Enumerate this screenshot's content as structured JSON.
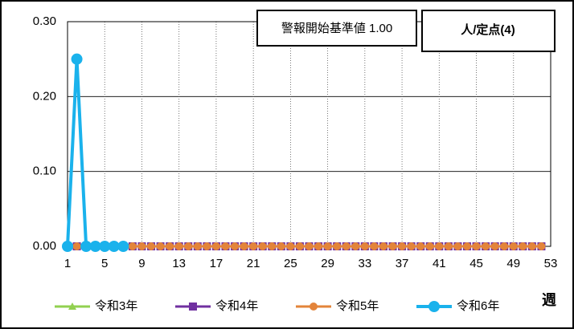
{
  "chart_data": {
    "type": "line",
    "annotations": [
      "警報開始基準値 1.00",
      "人/定点(4)"
    ],
    "x_label": "週",
    "x": [
      1,
      2,
      3,
      4,
      5,
      6,
      7,
      8,
      9,
      10,
      11,
      12,
      13,
      14,
      15,
      16,
      17,
      18,
      19,
      20,
      21,
      22,
      23,
      24,
      25,
      26,
      27,
      28,
      29,
      30,
      31,
      32,
      33,
      34,
      35,
      36,
      37,
      38,
      39,
      40,
      41,
      42,
      43,
      44,
      45,
      46,
      47,
      48,
      49,
      50,
      51,
      52
    ],
    "xlim": [
      1,
      53
    ],
    "xticks": [
      1,
      5,
      9,
      13,
      17,
      21,
      25,
      29,
      33,
      37,
      41,
      45,
      49,
      53
    ],
    "ylim": [
      0,
      0.3
    ],
    "yticks": [
      {
        "value": 0,
        "label": "0.00"
      },
      {
        "value": 0.1,
        "label": "0.10"
      },
      {
        "value": 0.2,
        "label": "0.20"
      },
      {
        "value": 0.3,
        "label": "0.30"
      }
    ],
    "grid": true,
    "series": [
      {
        "name": "令和3年",
        "color": "#92d050",
        "marker": "triangle",
        "values": [
          0,
          0,
          0,
          0,
          0,
          0,
          0,
          0,
          0,
          0,
          0,
          0,
          0,
          0,
          0,
          0,
          0,
          0,
          0,
          0,
          0,
          0,
          0,
          0,
          0,
          0,
          0,
          0,
          0,
          0,
          0,
          0,
          0,
          0,
          0,
          0,
          0,
          0,
          0,
          0,
          0,
          0,
          0,
          0,
          0,
          0,
          0,
          0,
          0,
          0,
          0,
          0
        ]
      },
      {
        "name": "令和4年",
        "color": "#7030a0",
        "marker": "square",
        "values": [
          0,
          0,
          0,
          0,
          0,
          0,
          0,
          0,
          0,
          0,
          0,
          0,
          0,
          0,
          0,
          0,
          0,
          0,
          0,
          0,
          0,
          0,
          0,
          0,
          0,
          0,
          0,
          0,
          0,
          0,
          0,
          0,
          0,
          0,
          0,
          0,
          0,
          0,
          0,
          0,
          0,
          0,
          0,
          0,
          0,
          0,
          0,
          0,
          0,
          0,
          0,
          0
        ]
      },
      {
        "name": "令和5年",
        "color": "#e3843a",
        "marker": "circle",
        "values": [
          0,
          0,
          0,
          0,
          0,
          0,
          0,
          0,
          0,
          0,
          0,
          0,
          0,
          0,
          0,
          0,
          0,
          0,
          0,
          0,
          0,
          0,
          0,
          0,
          0,
          0,
          0,
          0,
          0,
          0,
          0,
          0,
          0,
          0,
          0,
          0,
          0,
          0,
          0,
          0,
          0,
          0,
          0,
          0,
          0,
          0,
          0,
          0,
          0,
          0,
          0,
          0
        ]
      },
      {
        "name": "令和6年",
        "color": "#1ab2ec",
        "marker": "circle",
        "values": [
          0,
          0.25,
          0,
          0,
          0,
          0,
          0,
          null,
          null,
          null,
          null,
          null,
          null,
          null,
          null,
          null,
          null,
          null,
          null,
          null,
          null,
          null,
          null,
          null,
          null,
          null,
          null,
          null,
          null,
          null,
          null,
          null,
          null,
          null,
          null,
          null,
          null,
          null,
          null,
          null,
          null,
          null,
          null,
          null,
          null,
          null,
          null,
          null,
          null,
          null,
          null,
          null
        ]
      }
    ]
  }
}
